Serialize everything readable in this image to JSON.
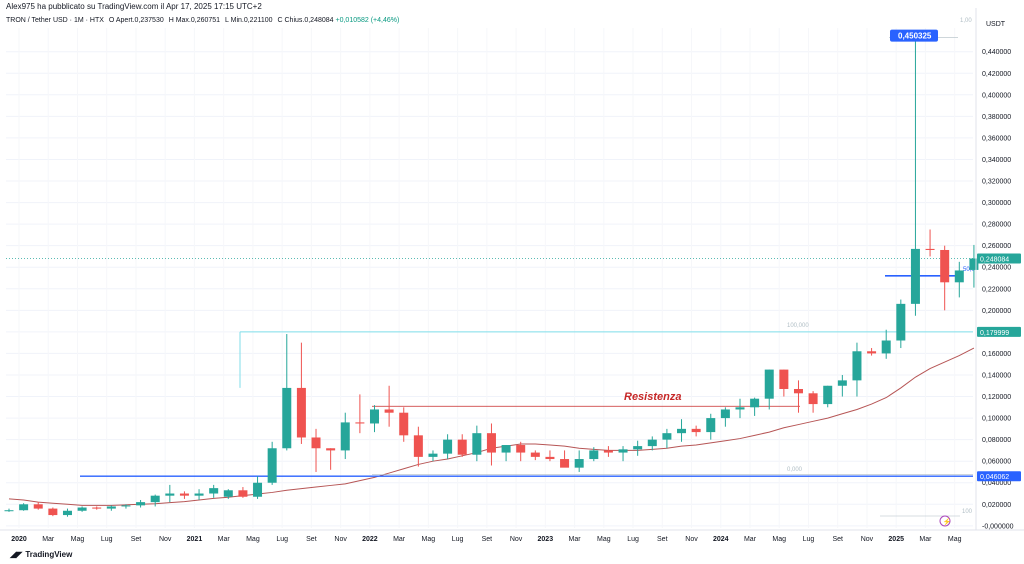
{
  "header": {
    "published_by": "Alex975 ha pubblicato su TradingView.com il Apr 17, 2025 17:15 UTC+2"
  },
  "legend": {
    "symbol": "TRON / Tether USD · 1M · HTX",
    "open_label": "O",
    "open_value": "Apert.0,237530",
    "high_label": "H",
    "high_value": "Max.0,260751",
    "low_label": "L",
    "low_value": "Min.0,221100",
    "close_label": "C",
    "close_value": "Chius.0,248084",
    "change": "+0,010582 (+4,46%)"
  },
  "chart_data": {
    "type": "candlestick",
    "currency_label": "USDT",
    "x_ticks": [
      "2020",
      "Mar",
      "Mag",
      "Lug",
      "Set",
      "Nov",
      "2021",
      "Mar",
      "Mag",
      "Lug",
      "Set",
      "Nov",
      "2022",
      "Mar",
      "Mag",
      "Lug",
      "Set",
      "Nov",
      "2023",
      "Mar",
      "Mag",
      "Lug",
      "Set",
      "Nov",
      "2024",
      "Mar",
      "Mag",
      "Lug",
      "Set",
      "Nov",
      "2025",
      "Mar",
      "Mag"
    ],
    "y_ticks": [
      "0,440000",
      "0,420000",
      "0,400000",
      "0,380000",
      "0,360000",
      "0,340000",
      "0,320000",
      "0,300000",
      "0,280000",
      "0,260000",
      "0,240000",
      "0,220000",
      "0,200000",
      "0,180000",
      "0,160000",
      "0,140000",
      "0,120000",
      "0,100000",
      "0,080000",
      "0,060000",
      "0,040000",
      "0,020000",
      "-0,000000"
    ],
    "ylim": [
      -0.002,
      0.462
    ],
    "up_color": "#26a69a",
    "down_color": "#ef5350",
    "candles": [
      [
        0.0139,
        0.016,
        0.013,
        0.0145
      ],
      [
        0.0145,
        0.021,
        0.014,
        0.02
      ],
      [
        0.02,
        0.022,
        0.015,
        0.016
      ],
      [
        0.016,
        0.017,
        0.009,
        0.01
      ],
      [
        0.01,
        0.016,
        0.0085,
        0.014
      ],
      [
        0.014,
        0.018,
        0.013,
        0.017
      ],
      [
        0.017,
        0.018,
        0.015,
        0.016
      ],
      [
        0.016,
        0.019,
        0.014,
        0.018
      ],
      [
        0.018,
        0.02,
        0.016,
        0.019
      ],
      [
        0.019,
        0.024,
        0.017,
        0.022
      ],
      [
        0.022,
        0.029,
        0.018,
        0.028
      ],
      [
        0.028,
        0.038,
        0.022,
        0.03
      ],
      [
        0.03,
        0.032,
        0.025,
        0.028
      ],
      [
        0.028,
        0.034,
        0.024,
        0.03
      ],
      [
        0.03,
        0.038,
        0.026,
        0.035
      ],
      [
        0.027,
        0.034,
        0.025,
        0.033
      ],
      [
        0.033,
        0.036,
        0.026,
        0.027
      ],
      [
        0.027,
        0.046,
        0.025,
        0.04
      ],
      [
        0.04,
        0.078,
        0.038,
        0.072
      ],
      [
        0.072,
        0.178,
        0.07,
        0.128
      ],
      [
        0.128,
        0.17,
        0.076,
        0.082
      ],
      [
        0.082,
        0.09,
        0.05,
        0.072
      ],
      [
        0.072,
        0.072,
        0.052,
        0.07
      ],
      [
        0.07,
        0.105,
        0.062,
        0.096
      ],
      [
        0.096,
        0.122,
        0.086,
        0.095
      ],
      [
        0.095,
        0.112,
        0.087,
        0.108
      ],
      [
        0.108,
        0.13,
        0.092,
        0.105
      ],
      [
        0.105,
        0.11,
        0.078,
        0.084
      ],
      [
        0.084,
        0.092,
        0.055,
        0.064
      ],
      [
        0.064,
        0.07,
        0.06,
        0.067
      ],
      [
        0.067,
        0.085,
        0.062,
        0.08
      ],
      [
        0.08,
        0.085,
        0.064,
        0.066
      ],
      [
        0.066,
        0.093,
        0.06,
        0.086
      ],
      [
        0.086,
        0.095,
        0.056,
        0.068
      ],
      [
        0.068,
        0.075,
        0.06,
        0.075
      ],
      [
        0.075,
        0.078,
        0.06,
        0.068
      ],
      [
        0.068,
        0.07,
        0.061,
        0.064
      ],
      [
        0.064,
        0.07,
        0.06,
        0.062
      ],
      [
        0.062,
        0.07,
        0.056,
        0.054
      ],
      [
        0.054,
        0.07,
        0.05,
        0.062
      ],
      [
        0.062,
        0.073,
        0.06,
        0.07
      ],
      [
        0.07,
        0.074,
        0.064,
        0.068
      ],
      [
        0.068,
        0.074,
        0.06,
        0.071
      ],
      [
        0.071,
        0.079,
        0.065,
        0.074
      ],
      [
        0.074,
        0.083,
        0.07,
        0.08
      ],
      [
        0.08,
        0.09,
        0.072,
        0.086
      ],
      [
        0.086,
        0.099,
        0.078,
        0.09
      ],
      [
        0.09,
        0.093,
        0.083,
        0.087
      ],
      [
        0.087,
        0.104,
        0.08,
        0.1
      ],
      [
        0.1,
        0.11,
        0.092,
        0.108
      ],
      [
        0.108,
        0.118,
        0.1,
        0.11
      ],
      [
        0.11,
        0.119,
        0.102,
        0.118
      ],
      [
        0.118,
        0.145,
        0.108,
        0.145
      ],
      [
        0.145,
        0.145,
        0.12,
        0.127
      ],
      [
        0.127,
        0.135,
        0.105,
        0.123
      ],
      [
        0.123,
        0.125,
        0.105,
        0.113
      ],
      [
        0.113,
        0.13,
        0.11,
        0.13
      ],
      [
        0.13,
        0.14,
        0.12,
        0.135
      ],
      [
        0.135,
        0.17,
        0.12,
        0.162
      ],
      [
        0.162,
        0.165,
        0.158,
        0.16
      ],
      [
        0.16,
        0.182,
        0.155,
        0.172
      ],
      [
        0.172,
        0.21,
        0.165,
        0.206
      ],
      [
        0.206,
        0.4503,
        0.195,
        0.257
      ],
      [
        0.257,
        0.275,
        0.25,
        0.256
      ],
      [
        0.256,
        0.26,
        0.2,
        0.226
      ],
      [
        0.226,
        0.245,
        0.212,
        0.237
      ],
      [
        0.2375,
        0.2607,
        0.2211,
        0.2481
      ]
    ],
    "sma_line": [
      0.025,
      0.024,
      0.022,
      0.021,
      0.02,
      0.019,
      0.019,
      0.019,
      0.0195,
      0.02,
      0.0205,
      0.0215,
      0.0225,
      0.024,
      0.0255,
      0.0265,
      0.028,
      0.0295,
      0.031,
      0.033,
      0.0345,
      0.036,
      0.0375,
      0.039,
      0.042,
      0.045,
      0.049,
      0.053,
      0.057,
      0.06,
      0.062,
      0.065,
      0.068,
      0.072,
      0.074,
      0.076,
      0.076,
      0.075,
      0.074,
      0.072,
      0.071,
      0.07,
      0.07,
      0.07,
      0.071,
      0.072,
      0.074,
      0.075,
      0.077,
      0.079,
      0.081,
      0.084,
      0.087,
      0.091,
      0.094,
      0.097,
      0.1,
      0.104,
      0.108,
      0.113,
      0.119,
      0.128,
      0.138,
      0.146,
      0.152,
      0.158,
      0.165
    ],
    "price_tags": {
      "last": "0,248084",
      "high": "0,450325",
      "fib_100": "0,179999",
      "fib_0": "0,046062"
    },
    "fib_labels": {
      "top": "1,00",
      "mid": "100,000",
      "zero": "0,000",
      "fifty": "50,0",
      "bottom": "100"
    },
    "levels": {
      "fib_100": 0.179999,
      "fib_0": 0.046062,
      "last": 0.248084,
      "high": 0.450325,
      "resistance": 0.111,
      "mid_level": 0.232
    },
    "annotations": {
      "resistance": "Resistenza"
    }
  },
  "footer": {
    "brand": "TradingView",
    "lightning_icon": "lightning-icon"
  }
}
